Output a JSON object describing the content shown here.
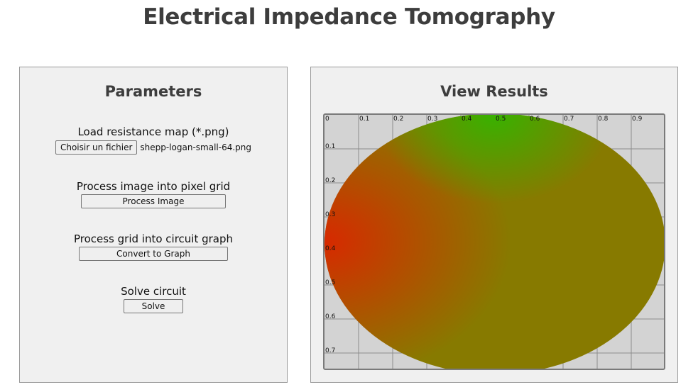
{
  "page": {
    "title": "Electrical Impedance Tomography"
  },
  "parameters": {
    "heading": "Parameters",
    "load": {
      "label": "Load resistance map (*.png)",
      "file_button": "Choisir un fichier",
      "file_name": "shepp-logan-small-64.png"
    },
    "process": {
      "label": "Process image into pixel grid",
      "button": "Process Image"
    },
    "convert": {
      "label": "Process grid into circuit graph",
      "button": "Convert to Graph"
    },
    "solve": {
      "label": "Solve circuit",
      "button": "Solve"
    }
  },
  "results": {
    "heading": "View Results",
    "x_ticks": [
      "0",
      "0.1",
      "0.2",
      "0.3",
      "0.4",
      "0.5",
      "0.6",
      "0.7",
      "0.8",
      "0.9"
    ],
    "y_ticks": [
      "0.1",
      "0.2",
      "0.3",
      "0.4",
      "0.5",
      "0.6",
      "0.7"
    ],
    "colors": {
      "background": "#d3d3d3",
      "grid": "#8c8c8c",
      "base": "#877a00",
      "hot": "#e02000",
      "cool": "#2fb800"
    }
  }
}
